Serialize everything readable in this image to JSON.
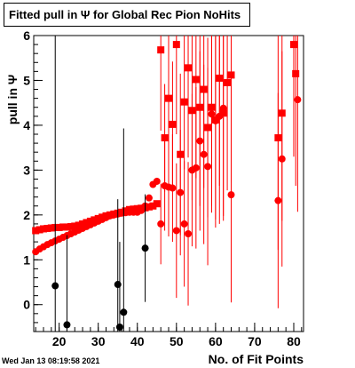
{
  "title": "Fitted pull in  Ψ  for Global Rec Pion NoHits",
  "timestamp": "Wed Jan 13 08:19:58 2021",
  "chart_data": {
    "type": "scatter",
    "title": "Fitted pull in  Ψ  for Global Rec Pion NoHits",
    "xlabel": "No. of Fit Points",
    "ylabel": "pull in  Ψ",
    "xlim": [
      13.5,
      82.5
    ],
    "ylim": [
      -0.6,
      6.0
    ],
    "x_ticks": [
      20,
      30,
      40,
      50,
      60,
      70,
      80
    ],
    "y_ticks": [
      0,
      1,
      2,
      3,
      4,
      5,
      6
    ],
    "colors": {
      "red": "#ff0000",
      "black": "#000000",
      "frame": "#000000"
    },
    "series": [
      {
        "marker": "square",
        "color": "#ff0000",
        "points": [
          [
            14,
            1.65,
            0.03
          ],
          [
            15,
            1.67,
            0.03
          ],
          [
            16,
            1.69,
            0.03
          ],
          [
            17,
            1.7,
            0.03
          ],
          [
            18,
            1.71,
            0.03
          ],
          [
            19,
            1.72,
            0.03
          ],
          [
            20,
            1.72,
            0.03
          ],
          [
            21,
            1.73,
            0.03
          ],
          [
            22,
            1.73,
            0.03
          ],
          [
            23,
            1.74,
            0.03
          ],
          [
            24,
            1.75,
            0.03
          ],
          [
            25,
            1.77,
            0.03
          ],
          [
            26,
            1.8,
            0.03
          ],
          [
            27,
            1.83,
            0.03
          ],
          [
            28,
            1.86,
            0.03
          ],
          [
            29,
            1.89,
            0.03
          ],
          [
            30,
            1.92,
            0.03
          ],
          [
            31,
            1.95,
            0.03
          ],
          [
            32,
            1.98,
            0.03
          ],
          [
            33,
            2.0,
            0.03
          ],
          [
            34,
            2.02,
            0.03
          ],
          [
            35,
            2.04,
            0.03
          ],
          [
            36,
            2.06,
            0.03
          ],
          [
            37,
            2.09,
            0.03
          ],
          [
            38,
            2.12,
            0.03
          ],
          [
            39,
            2.13,
            0.03
          ],
          [
            40,
            2.14,
            0.03
          ],
          [
            41,
            2.15,
            0.03
          ],
          [
            42,
            2.16,
            0.03
          ],
          [
            43,
            2.18,
            0.03
          ],
          [
            44,
            2.2,
            0.04
          ],
          [
            45,
            2.25,
            0.06
          ],
          [
            46,
            5.68,
            1.8
          ],
          [
            47,
            3.72,
            1.2
          ],
          [
            48,
            4.6,
            1.5
          ],
          [
            49,
            4.02,
            1.4
          ],
          [
            50,
            5.8,
            2.0
          ],
          [
            51,
            3.35,
            1.8
          ],
          [
            52,
            4.52,
            1.5
          ],
          [
            53,
            5.28,
            2.0
          ],
          [
            54,
            4.33,
            2.0
          ],
          [
            55,
            5.02,
            2.2
          ],
          [
            56,
            4.4,
            2.2
          ],
          [
            57,
            4.8,
            2.2
          ],
          [
            58,
            3.95,
            2.0
          ],
          [
            59,
            4.4,
            2.2
          ],
          [
            60,
            4.12,
            2.4
          ],
          [
            61,
            5.05,
            2.4
          ],
          [
            62,
            4.27,
            2.4
          ],
          [
            63,
            4.95,
            2.4
          ],
          [
            64,
            5.12,
            2.4
          ],
          [
            76,
            3.72,
            2.5
          ],
          [
            77,
            4.27,
            2.4
          ],
          [
            80,
            5.8,
            2.5
          ],
          [
            80.5,
            5.15,
            2.5
          ]
        ]
      },
      {
        "marker": "circle",
        "color": "#ff0000",
        "points": [
          [
            14,
            1.18,
            0.03
          ],
          [
            15,
            1.24,
            0.03
          ],
          [
            16,
            1.29,
            0.03
          ],
          [
            17,
            1.34,
            0.03
          ],
          [
            18,
            1.38,
            0.03
          ],
          [
            19,
            1.42,
            0.03
          ],
          [
            20,
            1.46,
            0.03
          ],
          [
            21,
            1.5,
            0.03
          ],
          [
            22,
            1.54,
            0.03
          ],
          [
            23,
            1.58,
            0.03
          ],
          [
            24,
            1.62,
            0.03
          ],
          [
            25,
            1.66,
            0.03
          ],
          [
            26,
            1.7,
            0.03
          ],
          [
            27,
            1.74,
            0.03
          ],
          [
            28,
            1.78,
            0.03
          ],
          [
            29,
            1.82,
            0.03
          ],
          [
            30,
            1.86,
            0.03
          ],
          [
            31,
            1.9,
            0.03
          ],
          [
            32,
            1.94,
            0.03
          ],
          [
            33,
            1.98,
            0.03
          ],
          [
            34,
            2.0,
            0.03
          ],
          [
            35,
            2.02,
            0.03
          ],
          [
            36,
            2.04,
            0.03
          ],
          [
            37,
            2.05,
            0.03
          ],
          [
            38,
            2.06,
            0.03
          ],
          [
            39,
            2.06,
            0.03
          ],
          [
            40,
            2.06,
            0.03
          ],
          [
            41,
            2.1,
            0.03
          ],
          [
            42,
            2.2,
            0.04
          ],
          [
            43,
            2.38,
            0.05
          ],
          [
            44,
            2.68,
            0.06
          ],
          [
            45,
            2.75,
            0.08
          ],
          [
            46,
            1.8,
            0.9
          ],
          [
            47,
            2.65,
            1.0
          ],
          [
            48,
            2.62,
            1.1
          ],
          [
            49,
            2.6,
            1.2
          ],
          [
            50,
            1.65,
            1.5
          ],
          [
            51,
            2.5,
            1.4
          ],
          [
            52,
            1.8,
            1.4
          ],
          [
            53,
            1.58,
            1.6
          ],
          [
            54,
            3.0,
            1.7
          ],
          [
            55,
            3.05,
            1.8
          ],
          [
            56,
            3.65,
            2.0
          ],
          [
            57,
            3.35,
            2.0
          ],
          [
            58,
            3.08,
            2.2
          ],
          [
            59,
            4.25,
            2.2
          ],
          [
            60,
            4.1,
            2.2
          ],
          [
            61,
            4.2,
            2.4
          ],
          [
            62,
            4.38,
            2.4
          ],
          [
            64,
            2.45,
            2.4
          ],
          [
            76,
            2.32,
            2.4
          ],
          [
            77,
            3.25,
            2.4
          ],
          [
            81,
            4.57,
            2.5
          ]
        ]
      },
      {
        "marker": "circle",
        "color": "#000000",
        "points": [
          [
            19,
            0.42,
            6.0
          ],
          [
            22,
            -0.45,
            2.0
          ],
          [
            35,
            0.45,
            1.9
          ],
          [
            35.5,
            -0.5,
            1.9
          ],
          [
            36.5,
            -0.17,
            4.1
          ],
          [
            42,
            1.26,
            1.2
          ]
        ]
      }
    ]
  }
}
